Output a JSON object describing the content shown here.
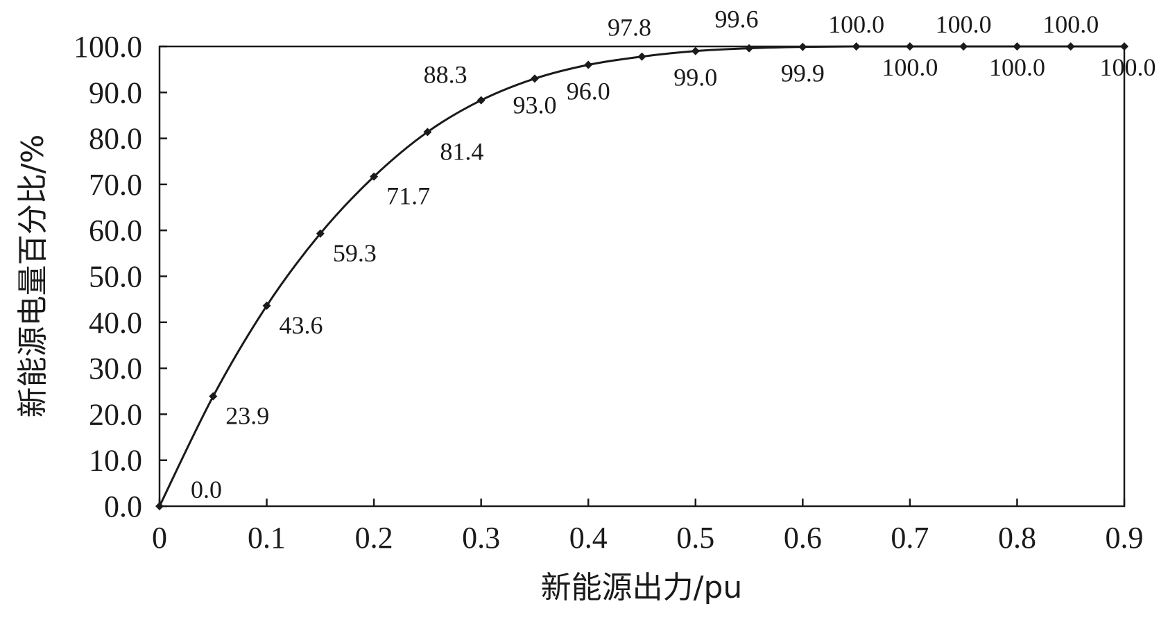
{
  "chart_data": {
    "type": "line",
    "xlabel": "新能源出力/pu",
    "ylabel": "新能源电量百分比/%",
    "xlim": [
      0,
      0.9
    ],
    "ylim": [
      0,
      100
    ],
    "grid": false,
    "x_ticks": [
      "0",
      "0.1",
      "0.2",
      "0.3",
      "0.4",
      "0.5",
      "0.6",
      "0.7",
      "0.8",
      "0.9"
    ],
    "y_ticks": [
      "0.0",
      "10.0",
      "20.0",
      "30.0",
      "40.0",
      "50.0",
      "60.0",
      "70.0",
      "80.0",
      "90.0",
      "100.0"
    ],
    "series": [
      {
        "x": [
          0,
          0.05,
          0.1,
          0.15,
          0.2,
          0.25,
          0.3,
          0.35,
          0.4,
          0.45,
          0.5,
          0.55,
          0.6,
          0.65,
          0.7,
          0.75,
          0.8,
          0.85,
          0.9
        ],
        "values": [
          0.0,
          23.9,
          43.6,
          59.3,
          71.7,
          81.4,
          88.3,
          93.0,
          96.0,
          97.8,
          99.0,
          99.6,
          99.9,
          100.0,
          100.0,
          100.0,
          100.0,
          100.0,
          100.0
        ],
        "labels": [
          "0.0",
          "23.9",
          "43.6",
          "59.3",
          "71.7",
          "81.4",
          "88.3",
          "93.0",
          "96.0",
          "97.8",
          "99.0",
          "99.6",
          "99.9",
          "100.0",
          "100.0",
          "100.0",
          "100.0",
          "100.0",
          "100.0"
        ],
        "color": "#1a1a1a"
      }
    ]
  }
}
